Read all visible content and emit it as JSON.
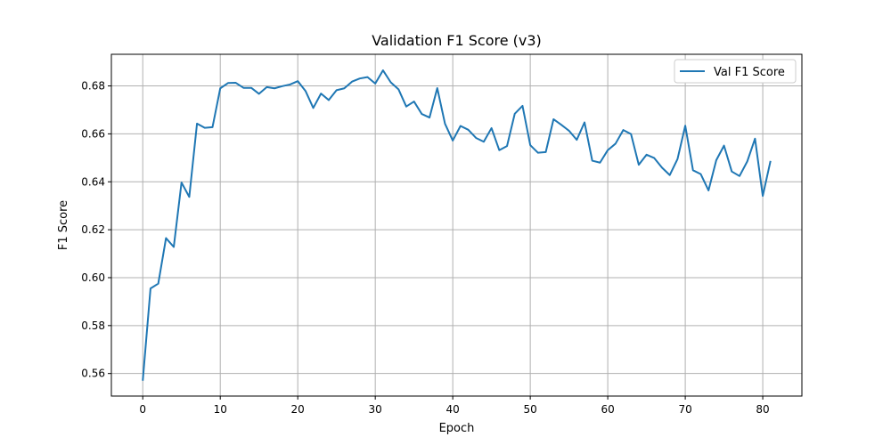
{
  "chart_data": {
    "type": "line",
    "title": "Validation F1 Score (v3)",
    "xlabel": "Epoch",
    "ylabel": "F1 Score",
    "xlim": [
      -4.05,
      85.05
    ],
    "ylim": [
      0.5506,
      0.6932
    ],
    "xticks": [
      0,
      10,
      20,
      30,
      40,
      50,
      60,
      70,
      80
    ],
    "yticks": [
      0.56,
      0.58,
      0.6,
      0.62,
      0.64,
      0.66,
      0.68
    ],
    "ytick_labels": [
      "0.56",
      "0.58",
      "0.60",
      "0.62",
      "0.64",
      "0.66",
      "0.68"
    ],
    "grid": true,
    "legend_position": "top-right",
    "series": [
      {
        "name": "Val F1 Score",
        "color": "#1f77b4",
        "x": [
          0,
          1,
          2,
          3,
          4,
          5,
          6,
          7,
          8,
          9,
          10,
          11,
          12,
          13,
          14,
          15,
          16,
          17,
          18,
          19,
          20,
          21,
          22,
          23,
          24,
          25,
          26,
          27,
          28,
          29,
          30,
          31,
          32,
          33,
          34,
          35,
          36,
          37,
          38,
          39,
          40,
          41,
          42,
          43,
          44,
          45,
          46,
          47,
          48,
          49,
          50,
          51,
          52,
          53,
          54,
          55,
          56,
          57,
          58,
          59,
          60,
          61,
          62,
          63,
          64,
          65,
          66,
          67,
          68,
          69,
          70,
          71,
          72,
          73,
          74,
          75,
          76,
          77,
          78,
          79,
          80,
          81
        ],
        "values": [
          0.557,
          0.5955,
          0.5975,
          0.6165,
          0.6128,
          0.6397,
          0.6337,
          0.6643,
          0.6625,
          0.6628,
          0.679,
          0.6812,
          0.6813,
          0.6792,
          0.6792,
          0.6767,
          0.6795,
          0.679,
          0.6799,
          0.6806,
          0.682,
          0.6779,
          0.6708,
          0.6768,
          0.6741,
          0.6782,
          0.679,
          0.6818,
          0.6831,
          0.6837,
          0.681,
          0.6865,
          0.6815,
          0.6786,
          0.6714,
          0.6735,
          0.6683,
          0.6668,
          0.6791,
          0.6642,
          0.6572,
          0.6633,
          0.6617,
          0.6583,
          0.6567,
          0.6624,
          0.6532,
          0.6549,
          0.6684,
          0.6717,
          0.6553,
          0.6521,
          0.6524,
          0.6661,
          0.6638,
          0.6613,
          0.6575,
          0.6648,
          0.6488,
          0.648,
          0.6532,
          0.6559,
          0.6616,
          0.6599,
          0.6471,
          0.6513,
          0.6499,
          0.6459,
          0.6428,
          0.6495,
          0.6634,
          0.6448,
          0.6432,
          0.6364,
          0.649,
          0.6551,
          0.6443,
          0.6424,
          0.6485,
          0.658,
          0.6341,
          0.6487
        ]
      }
    ]
  }
}
